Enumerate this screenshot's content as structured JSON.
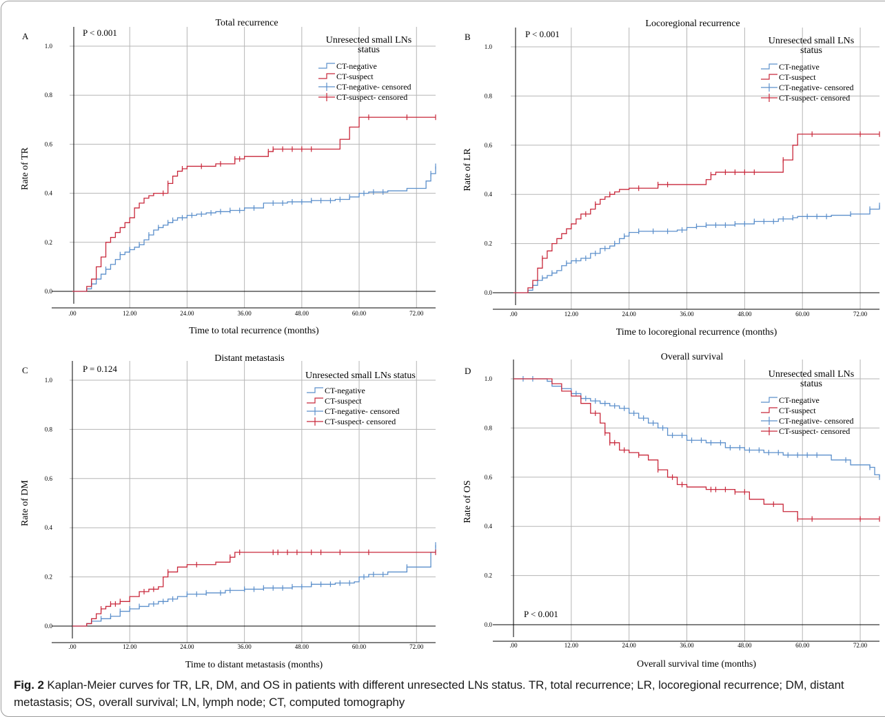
{
  "caption": {
    "label": "Fig. 2",
    "text": "Kaplan-Meier curves for TR, LR, DM, and OS in patients with different unresected LNs status. TR, total recurrence; LR, locoregional recurrence; DM, distant metastasis; OS, overall survival; LN, lymph node; CT, computed tomography"
  },
  "colors": {
    "ct_negative": "#5b8fcb",
    "ct_suspect": "#c8273a",
    "grid": "#b5b5b5"
  },
  "chart_data": [
    {
      "panel": "A",
      "type": "line",
      "step": true,
      "title": "Total recurrence",
      "pvalue": "P < 0.001",
      "xlabel": "Time to total recurrence (months)",
      "ylabel": "Rate of TR",
      "xticks": [
        ".00",
        "12.00",
        "24.00",
        "36.00",
        "48.00",
        "60.00",
        "72.00"
      ],
      "yticks": [
        "0.0",
        "0.2",
        "0.4",
        "0.6",
        "0.8",
        "1.0"
      ],
      "xlim": [
        0,
        76
      ],
      "ylim": [
        0,
        1
      ],
      "grid": true,
      "legend_title": "Unresected small LNs status",
      "legend": [
        "CT-negative",
        "CT-suspect",
        "CT-negative- censored",
        "CT-suspect- censored"
      ],
      "series": [
        {
          "name": "CT-negative",
          "color": "#5b8fcb",
          "x": [
            0,
            2,
            3,
            4,
            5,
            6,
            7,
            8,
            9,
            10,
            11,
            12,
            13,
            14,
            15,
            16,
            17,
            18,
            19,
            20,
            21,
            22,
            24,
            26,
            28,
            30,
            33,
            36,
            40,
            45,
            50,
            55,
            58,
            60,
            62,
            66,
            70,
            74,
            75,
            76
          ],
          "y": [
            0,
            0,
            0.01,
            0.03,
            0.05,
            0.07,
            0.09,
            0.11,
            0.13,
            0.15,
            0.16,
            0.17,
            0.18,
            0.19,
            0.21,
            0.23,
            0.25,
            0.26,
            0.27,
            0.28,
            0.29,
            0.3,
            0.31,
            0.315,
            0.32,
            0.325,
            0.33,
            0.34,
            0.36,
            0.365,
            0.37,
            0.375,
            0.385,
            0.4,
            0.405,
            0.41,
            0.42,
            0.45,
            0.48,
            0.51
          ],
          "censored_x": [
            4,
            7,
            10,
            12,
            14,
            16,
            18,
            20,
            21,
            23,
            25,
            27,
            29,
            31,
            33,
            35,
            38,
            42,
            44,
            46,
            48,
            50,
            52,
            54,
            56,
            58,
            61,
            63,
            65,
            75,
            76
          ]
        },
        {
          "name": "CT-suspect",
          "color": "#c8273a",
          "x": [
            0,
            2,
            3,
            4,
            5,
            6,
            7,
            8,
            9,
            10,
            11,
            12,
            13,
            14,
            15,
            16,
            17,
            18,
            20,
            21,
            22,
            23,
            24,
            30,
            34,
            36,
            40,
            41,
            42,
            44,
            55,
            56,
            58,
            59,
            60,
            61,
            62,
            76
          ],
          "y": [
            0,
            0,
            0.02,
            0.05,
            0.1,
            0.14,
            0.2,
            0.22,
            0.24,
            0.26,
            0.28,
            0.3,
            0.34,
            0.36,
            0.38,
            0.39,
            0.4,
            0.4,
            0.44,
            0.47,
            0.49,
            0.5,
            0.51,
            0.52,
            0.54,
            0.55,
            0.55,
            0.57,
            0.58,
            0.58,
            0.58,
            0.62,
            0.67,
            0.67,
            0.71,
            0.71,
            0.71,
            0.71
          ],
          "censored_x": [
            19,
            20,
            23,
            27,
            31,
            34,
            35,
            41,
            42,
            44,
            46,
            48,
            50,
            62,
            70,
            76
          ]
        }
      ]
    },
    {
      "panel": "B",
      "type": "line",
      "step": true,
      "title": "Locoregional recurrence",
      "pvalue": "P < 0.001",
      "xlabel": "Time to locoregional recurrence (months)",
      "ylabel": "Rate of LR",
      "xticks": [
        ".00",
        "12.00",
        "24.00",
        "36.00",
        "48.00",
        "60.00",
        "72.00"
      ],
      "yticks": [
        "0.0",
        "0.2",
        "0.4",
        "0.6",
        "0.8",
        "1.0"
      ],
      "xlim": [
        0,
        76
      ],
      "ylim": [
        0,
        1
      ],
      "grid": true,
      "legend_title": "Unresected small LNs status",
      "legend": [
        "CT-negative",
        "CT-suspect",
        "CT-negative- censored",
        "CT-suspect- censored"
      ],
      "series": [
        {
          "name": "CT-negative",
          "color": "#5b8fcb",
          "x": [
            0,
            2,
            3,
            4,
            5,
            6,
            7,
            8,
            9,
            10,
            11,
            12,
            14,
            16,
            18,
            20,
            21,
            22,
            23,
            24,
            26,
            30,
            34,
            36,
            38,
            40,
            46,
            50,
            55,
            58,
            59,
            62,
            66,
            70,
            74,
            76
          ],
          "y": [
            0,
            0,
            0.01,
            0.03,
            0.05,
            0.06,
            0.07,
            0.08,
            0.09,
            0.11,
            0.12,
            0.13,
            0.14,
            0.16,
            0.18,
            0.19,
            0.2,
            0.22,
            0.23,
            0.245,
            0.25,
            0.25,
            0.255,
            0.265,
            0.27,
            0.275,
            0.28,
            0.29,
            0.3,
            0.305,
            0.31,
            0.31,
            0.315,
            0.32,
            0.34,
            0.355
          ],
          "censored_x": [
            4,
            6,
            8,
            11,
            13,
            15,
            17,
            19,
            21,
            23,
            26,
            29,
            32,
            35,
            38,
            40,
            42,
            44,
            46,
            48,
            50,
            52,
            54,
            56,
            58,
            61,
            63,
            65,
            70,
            74,
            76
          ]
        },
        {
          "name": "CT-suspect",
          "color": "#c8273a",
          "x": [
            0,
            2,
            3,
            4,
            5,
            6,
            7,
            8,
            9,
            10,
            11,
            12,
            13,
            14,
            16,
            17,
            18,
            19,
            20,
            21,
            22,
            24,
            30,
            34,
            40,
            41,
            42,
            55,
            56,
            58,
            59,
            76
          ],
          "y": [
            0,
            0,
            0.02,
            0.05,
            0.1,
            0.14,
            0.17,
            0.2,
            0.22,
            0.24,
            0.26,
            0.28,
            0.3,
            0.32,
            0.34,
            0.36,
            0.38,
            0.39,
            0.4,
            0.41,
            0.42,
            0.425,
            0.44,
            0.44,
            0.46,
            0.48,
            0.49,
            0.49,
            0.54,
            0.6,
            0.645,
            0.645
          ],
          "censored_x": [
            6,
            15,
            17,
            20,
            26,
            30,
            32,
            41,
            44,
            46,
            48,
            50,
            56,
            62,
            72,
            76
          ]
        }
      ]
    },
    {
      "panel": "C",
      "type": "line",
      "step": true,
      "title": "Distant metastasis",
      "pvalue": "P = 0.124",
      "xlabel": "Time to distant metastasis (months)",
      "ylabel": "Rate of DM",
      "xticks": [
        ".00",
        "12.00",
        "24.00",
        "36.00",
        "48.00",
        "60.00",
        "72.00"
      ],
      "yticks": [
        "0.0",
        "0.2",
        "0.4",
        "0.6",
        "0.8",
        "1.0"
      ],
      "xlim": [
        0,
        76
      ],
      "ylim": [
        0,
        1
      ],
      "grid": true,
      "legend_title": "Unresected small LNs status",
      "legend": [
        "CT-negative",
        "CT-suspect",
        "CT-negative- censored",
        "CT-suspect- censored"
      ],
      "series": [
        {
          "name": "CT-negative",
          "color": "#5b8fcb",
          "x": [
            0,
            2,
            3,
            4,
            6,
            8,
            10,
            12,
            14,
            16,
            18,
            20,
            22,
            24,
            28,
            32,
            36,
            40,
            46,
            50,
            55,
            59,
            60,
            62,
            66,
            70,
            74,
            75,
            76
          ],
          "y": [
            0,
            0,
            0.01,
            0.02,
            0.03,
            0.04,
            0.06,
            0.07,
            0.08,
            0.09,
            0.1,
            0.11,
            0.12,
            0.13,
            0.135,
            0.145,
            0.15,
            0.155,
            0.16,
            0.17,
            0.175,
            0.18,
            0.2,
            0.21,
            0.22,
            0.24,
            0.24,
            0.3,
            0.33
          ],
          "censored_x": [
            4,
            6,
            8,
            10,
            12,
            14,
            17,
            19,
            21,
            24,
            26,
            28,
            31,
            33,
            36,
            38,
            40,
            42,
            44,
            46,
            48,
            50,
            52,
            54,
            56,
            58,
            61,
            63,
            65,
            70,
            76
          ]
        },
        {
          "name": "CT-suspect",
          "color": "#c8273a",
          "x": [
            0,
            2,
            3,
            4,
            5,
            6,
            7,
            8,
            10,
            12,
            14,
            16,
            18,
            19,
            20,
            22,
            24,
            30,
            33,
            34,
            36,
            76
          ],
          "y": [
            0,
            0,
            0.01,
            0.03,
            0.05,
            0.07,
            0.08,
            0.09,
            0.1,
            0.12,
            0.14,
            0.15,
            0.16,
            0.2,
            0.22,
            0.24,
            0.25,
            0.26,
            0.28,
            0.3,
            0.3,
            0.3
          ],
          "censored_x": [
            6,
            8,
            9,
            10,
            15,
            17,
            20,
            26,
            33,
            35,
            42,
            43,
            45,
            47,
            50,
            52,
            56,
            62,
            76
          ]
        }
      ]
    },
    {
      "panel": "D",
      "type": "line",
      "step": true,
      "title": "Overall survival",
      "pvalue": "P < 0.001",
      "xlabel": "Overall survival time (months)",
      "ylabel": "Rate of OS",
      "xticks": [
        ".00",
        "12.00",
        "24.00",
        "36.00",
        "48.00",
        "60.00",
        "72.00"
      ],
      "yticks": [
        "0.0",
        "0.2",
        "0.4",
        "0.6",
        "0.8",
        "1.0"
      ],
      "xlim": [
        0,
        76
      ],
      "ylim": [
        0,
        1
      ],
      "grid": true,
      "legend_title": "Unresected small LNs status",
      "legend": [
        "CT-negative",
        "CT-suspect",
        "CT-negative- censored",
        "CT-suspect- censored"
      ],
      "series": [
        {
          "name": "CT-negative",
          "color": "#5b8fcb",
          "x": [
            0,
            5,
            7,
            8,
            10,
            12,
            14,
            16,
            18,
            20,
            22,
            24,
            26,
            28,
            30,
            32,
            36,
            40,
            44,
            48,
            52,
            56,
            60,
            63,
            64,
            66,
            70,
            72,
            74,
            75,
            76
          ],
          "y": [
            1,
            1,
            0.99,
            0.97,
            0.96,
            0.94,
            0.92,
            0.91,
            0.9,
            0.89,
            0.88,
            0.86,
            0.84,
            0.82,
            0.8,
            0.77,
            0.75,
            0.74,
            0.72,
            0.71,
            0.7,
            0.69,
            0.69,
            0.69,
            0.69,
            0.67,
            0.65,
            0.65,
            0.64,
            0.61,
            0.6
          ],
          "censored_x": [
            2,
            4,
            13,
            15,
            17,
            19,
            21,
            23,
            25,
            27,
            29,
            31,
            33,
            35,
            37,
            39,
            41,
            43,
            45,
            47,
            49,
            51,
            53,
            55,
            57,
            59,
            61,
            63,
            69,
            74,
            76
          ]
        },
        {
          "name": "CT-suspect",
          "color": "#c8273a",
          "x": [
            0,
            7,
            8,
            10,
            12,
            14,
            16,
            18,
            19,
            20,
            22,
            24,
            26,
            28,
            30,
            32,
            34,
            36,
            40,
            44,
            46,
            48,
            49,
            52,
            56,
            59,
            60,
            76
          ],
          "y": [
            1,
            1,
            0.98,
            0.95,
            0.93,
            0.9,
            0.86,
            0.82,
            0.78,
            0.74,
            0.71,
            0.7,
            0.69,
            0.67,
            0.63,
            0.6,
            0.57,
            0.56,
            0.55,
            0.55,
            0.54,
            0.54,
            0.51,
            0.49,
            0.46,
            0.43,
            0.43,
            0.43
          ],
          "censored_x": [
            17,
            19,
            20,
            21,
            23,
            26,
            30,
            33,
            35,
            41,
            42,
            44,
            46,
            48,
            54,
            59,
            62,
            72,
            76
          ]
        }
      ]
    }
  ]
}
